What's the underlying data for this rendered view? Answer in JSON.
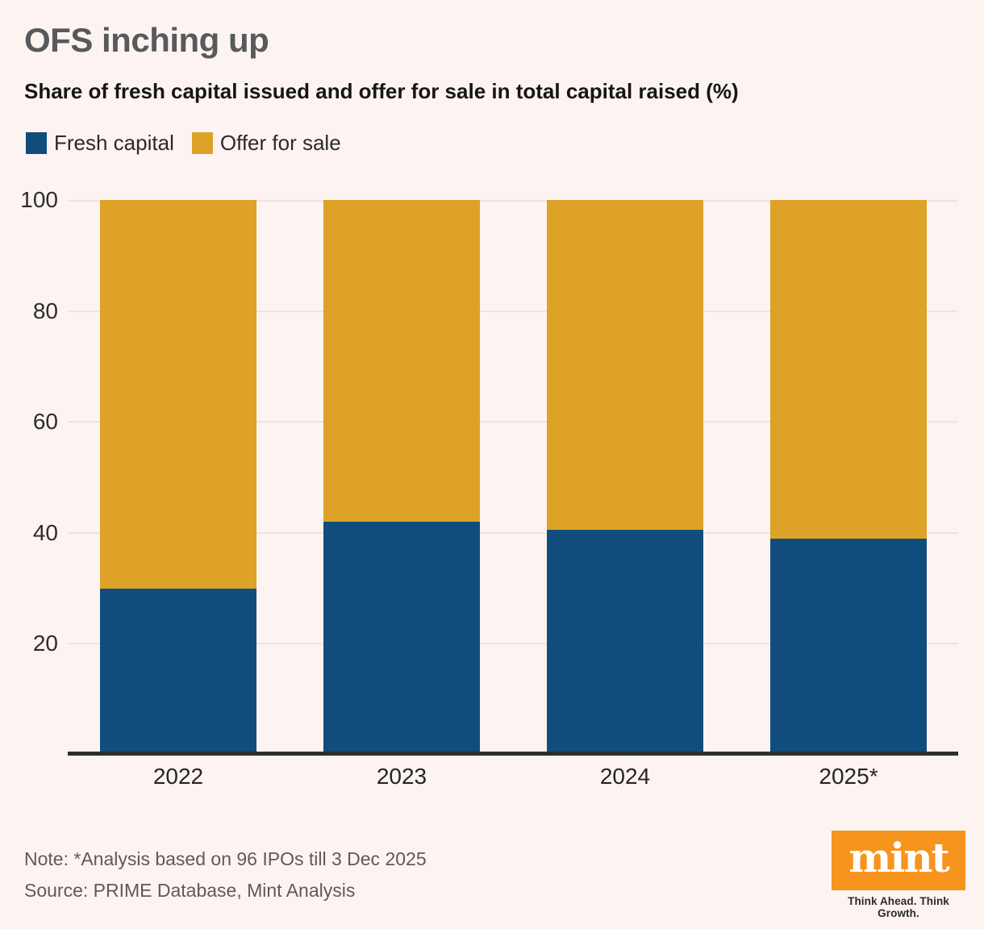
{
  "header": {
    "title": "OFS inching up",
    "subtitle": "Share of fresh capital issued and offer for sale in total capital raised (%)"
  },
  "chart_data": {
    "type": "bar",
    "stacked": true,
    "title": "OFS inching up",
    "subtitle": "Share of fresh capital issued and offer for sale in total capital raised (%)",
    "categories": [
      "2022",
      "2023",
      "2024",
      "2025*"
    ],
    "series": [
      {
        "name": "Fresh capital",
        "color": "#114d7c",
        "values": [
          30,
          42,
          40.5,
          39
        ]
      },
      {
        "name": "Offer for sale",
        "color": "#dda227",
        "values": [
          70,
          58,
          59.5,
          61
        ]
      }
    ],
    "unit": "%",
    "ylim": [
      0,
      100
    ],
    "yticks": [
      20,
      40,
      60,
      80,
      100
    ],
    "grid": true,
    "legend_position": "top-left"
  },
  "footer": {
    "note": "Note: *Analysis based on 96 IPOs till 3 Dec 2025",
    "source": "Source: PRIME Database, Mint Analysis",
    "logo_text": "mint",
    "tagline": "Think Ahead. Think Growth."
  },
  "colors": {
    "background": "#fdf4f2",
    "gridline": "#eae4e2",
    "axis": "#2e2e2e",
    "logo_orange": "#f7941e",
    "fresh_capital_blue": "#114d7c",
    "offer_for_sale_orange": "#dda227"
  }
}
